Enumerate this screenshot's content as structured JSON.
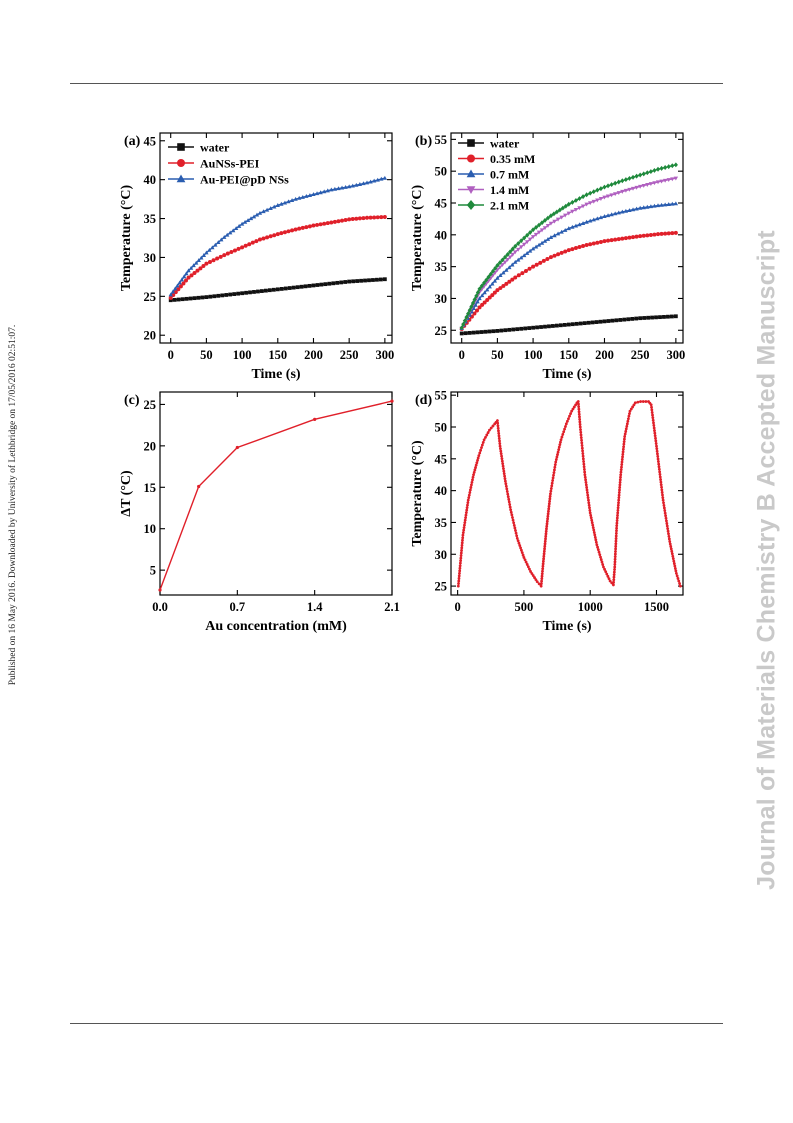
{
  "side_note": "Published on 16 May 2016. Downloaded by University of Lethbridge on 17/05/2016 02:51:07.",
  "watermark": "Journal of Materials Chemistry B Accepted Manuscript",
  "colors": {
    "black": "#111111",
    "red": "#e0202a",
    "blue": "#2a5db0",
    "purple": "#b060c0",
    "green": "#1f8a3c"
  },
  "chart_data": [
    {
      "panel": "(a)",
      "type": "line",
      "xlabel": "Time (s)",
      "ylabel": "Temperature (°C)",
      "xlim": [
        -15,
        310
      ],
      "ylim": [
        19,
        46
      ],
      "xticks": [
        0,
        50,
        100,
        150,
        200,
        250,
        300
      ],
      "yticks": [
        20,
        25,
        30,
        35,
        40,
        45
      ],
      "legend_position": "top-left",
      "series": [
        {
          "name": "water",
          "marker": "square",
          "color": "#111111",
          "x": [
            0,
            50,
            100,
            150,
            200,
            250,
            300
          ],
          "y": [
            24.5,
            24.9,
            25.4,
            25.9,
            26.4,
            26.9,
            27.2
          ]
        },
        {
          "name": "AuNSs-PEI",
          "marker": "circle",
          "color": "#e0202a",
          "x": [
            0,
            25,
            50,
            75,
            100,
            125,
            150,
            175,
            200,
            225,
            250,
            275,
            300
          ],
          "y": [
            24.8,
            27.4,
            29.2,
            30.3,
            31.3,
            32.3,
            33.0,
            33.6,
            34.1,
            34.5,
            34.9,
            35.1,
            35.2
          ]
        },
        {
          "name": "Au-PEI@pD NSs",
          "marker": "triangle",
          "color": "#2a5db0",
          "x": [
            0,
            25,
            50,
            75,
            100,
            125,
            150,
            175,
            200,
            225,
            250,
            275,
            300
          ],
          "y": [
            25.2,
            28.3,
            30.6,
            32.6,
            34.3,
            35.7,
            36.7,
            37.5,
            38.1,
            38.7,
            39.1,
            39.6,
            40.2
          ]
        }
      ]
    },
    {
      "panel": "(b)",
      "type": "line",
      "xlabel": "Time (s)",
      "ylabel": "Temperature (°C)",
      "xlim": [
        -15,
        310
      ],
      "ylim": [
        23,
        56
      ],
      "xticks": [
        0,
        50,
        100,
        150,
        200,
        250,
        300
      ],
      "yticks": [
        25,
        30,
        35,
        40,
        45,
        50,
        55
      ],
      "legend_position": "top-left",
      "series": [
        {
          "name": "water",
          "marker": "square",
          "color": "#111111",
          "x": [
            0,
            50,
            100,
            150,
            200,
            250,
            300
          ],
          "y": [
            24.5,
            24.9,
            25.4,
            25.9,
            26.4,
            26.9,
            27.2
          ]
        },
        {
          "name": "0.35 mM",
          "marker": "circle",
          "color": "#e0202a",
          "x": [
            0,
            25,
            50,
            75,
            100,
            125,
            150,
            175,
            200,
            225,
            250,
            275,
            300
          ],
          "y": [
            25.2,
            28.6,
            31.3,
            33.3,
            35.0,
            36.5,
            37.6,
            38.4,
            39.0,
            39.4,
            39.8,
            40.1,
            40.3
          ]
        },
        {
          "name": "0.7 mM",
          "marker": "triangle",
          "color": "#2a5db0",
          "x": [
            0,
            25,
            50,
            75,
            100,
            125,
            150,
            175,
            200,
            225,
            250,
            275,
            300
          ],
          "y": [
            25.3,
            30.0,
            33.2,
            35.7,
            37.8,
            39.6,
            41.0,
            42.0,
            42.9,
            43.6,
            44.2,
            44.6,
            44.9
          ]
        },
        {
          "name": "1.4 mM",
          "marker": "triangle-down",
          "color": "#b060c0",
          "x": [
            0,
            25,
            50,
            75,
            100,
            125,
            150,
            175,
            200,
            225,
            250,
            275,
            300
          ],
          "y": [
            25.3,
            31.0,
            34.5,
            37.3,
            39.7,
            41.8,
            43.4,
            44.8,
            45.9,
            46.8,
            47.6,
            48.3,
            48.9
          ]
        },
        {
          "name": "2.1 mM",
          "marker": "diamond",
          "color": "#1f8a3c",
          "x": [
            0,
            25,
            50,
            75,
            100,
            125,
            150,
            175,
            200,
            225,
            250,
            275,
            300
          ],
          "y": [
            25.4,
            31.5,
            35.2,
            38.2,
            40.8,
            43.0,
            44.8,
            46.3,
            47.5,
            48.5,
            49.4,
            50.3,
            51.0
          ]
        }
      ]
    },
    {
      "panel": "(c)",
      "type": "line",
      "xlabel": "Au concentration (mM)",
      "ylabel": "ΔT (°C)",
      "xlim": [
        0.0,
        2.1
      ],
      "ylim": [
        2.0,
        26.5
      ],
      "xticks": [
        0.0,
        0.7,
        1.4,
        2.1
      ],
      "xtick_labels": [
        "0.0",
        "0.7",
        "1.4",
        "2.1"
      ],
      "yticks": [
        5,
        10,
        15,
        20,
        25
      ],
      "series": [
        {
          "name": "",
          "marker": "dot",
          "color": "#e0202a",
          "x": [
            0.0,
            0.35,
            0.7,
            1.4,
            2.1
          ],
          "y": [
            2.6,
            15.1,
            19.8,
            23.2,
            25.4
          ]
        }
      ]
    },
    {
      "panel": "(d)",
      "type": "line",
      "xlabel": "Time (s)",
      "ylabel": "Temperature (°C)",
      "xlim": [
        -50,
        1700
      ],
      "ylim": [
        23.6,
        55.5
      ],
      "xticks": [
        0,
        500,
        1000,
        1500
      ],
      "yticks": [
        25,
        30,
        35,
        40,
        45,
        50,
        55
      ],
      "series": [
        {
          "name": "",
          "marker": "dot",
          "color": "#e0202a",
          "x": [
            5,
            40,
            80,
            120,
            160,
            200,
            240,
            280,
            300,
            320,
            360,
            400,
            450,
            500,
            550,
            600,
            630,
            645,
            670,
            700,
            740,
            780,
            820,
            860,
            900,
            910,
            925,
            960,
            1000,
            1050,
            1100,
            1150,
            1175,
            1185,
            1200,
            1230,
            1260,
            1300,
            1340,
            1380,
            1440,
            1460,
            1500,
            1550,
            1600,
            1650,
            1680
          ],
          "y": [
            25.0,
            33.0,
            38.5,
            42.5,
            45.5,
            48.0,
            49.5,
            50.5,
            51.0,
            47.0,
            41.5,
            37.0,
            32.5,
            29.5,
            27.3,
            25.7,
            25.0,
            28.5,
            34.0,
            39.5,
            44.5,
            48.0,
            50.5,
            52.5,
            53.8,
            54.0,
            50.0,
            42.5,
            36.5,
            31.5,
            28.0,
            25.8,
            25.2,
            28.0,
            34.5,
            42.5,
            48.5,
            52.5,
            53.8,
            54.0,
            54.0,
            53.5,
            47.0,
            38.5,
            32.0,
            27.0,
            25.0
          ]
        }
      ]
    }
  ]
}
